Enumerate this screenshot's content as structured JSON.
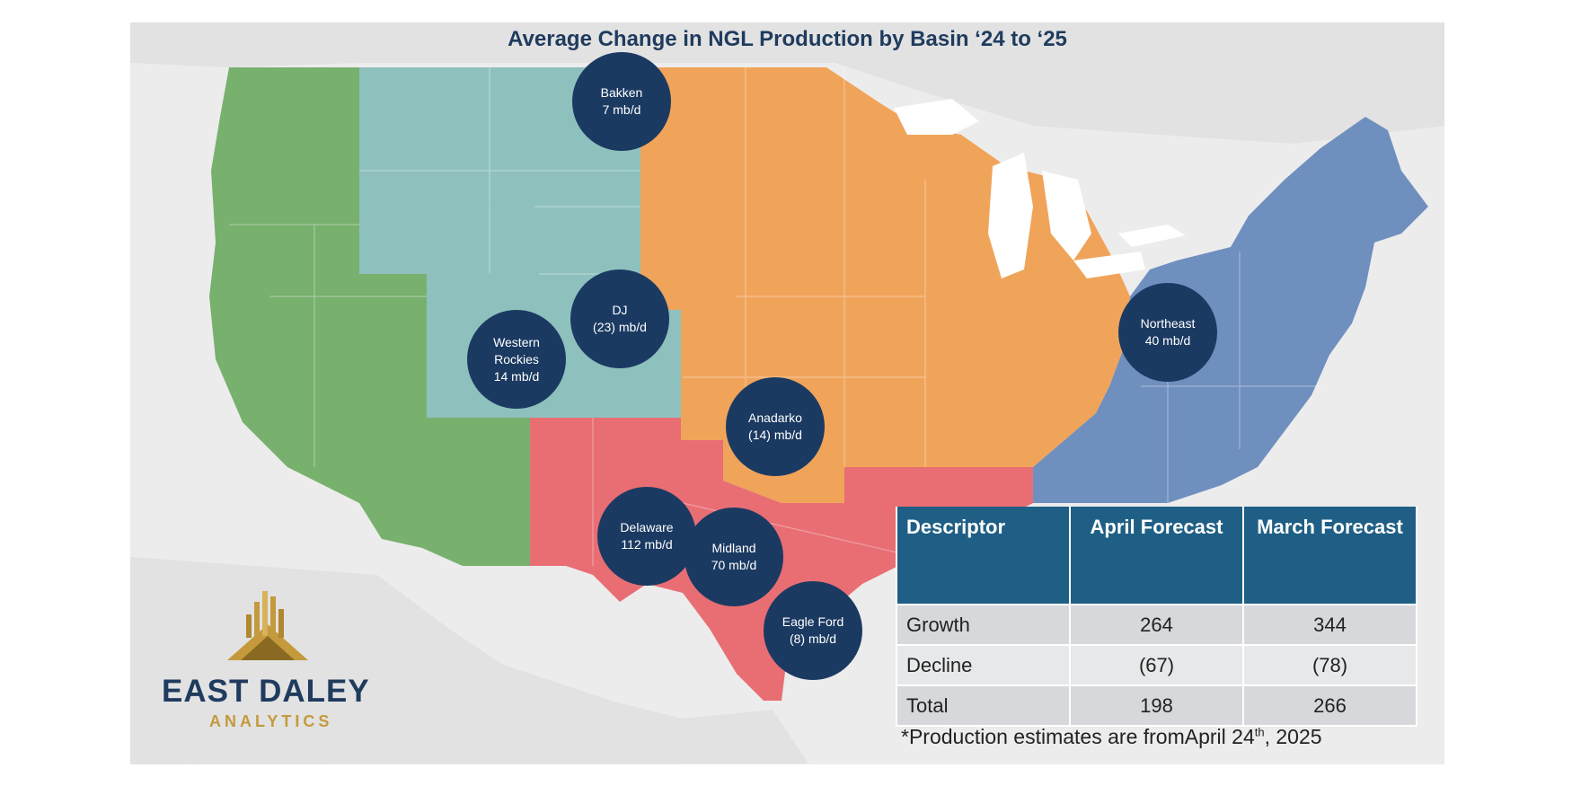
{
  "title": "Average Change in NGL Production by Basin ‘24 to ‘25",
  "colors": {
    "background": "#ececec",
    "land_gray": "#e0e0e0",
    "west_region": "#78b06e",
    "rockies_region": "#8ec1bd",
    "midcontinent_region": "#f0a45a",
    "texas_region": "#e86e74",
    "northeast_region": "#6f8fbf",
    "bubble": "#1b3a62",
    "table_header": "#1f5f85",
    "brand_navy": "#1f3b5e",
    "brand_gold": "#c49a3c"
  },
  "basins": [
    {
      "name_lines": [
        "Bakken",
        "7 mb/d"
      ]
    },
    {
      "name_lines": [
        "DJ",
        "(23) mb/d"
      ]
    },
    {
      "name_lines": [
        "Western",
        "Rockies",
        "14 mb/d"
      ]
    },
    {
      "name_lines": [
        "Northeast",
        "40 mb/d"
      ]
    },
    {
      "name_lines": [
        "Anadarko",
        "(14) mb/d"
      ]
    },
    {
      "name_lines": [
        "Delaware",
        "112 mb/d"
      ]
    },
    {
      "name_lines": [
        "Midland",
        "70 mb/d"
      ]
    },
    {
      "name_lines": [
        "Eagle Ford",
        "(8) mb/d"
      ]
    }
  ],
  "table": {
    "headers": [
      "Descriptor",
      "April Forecast",
      "March Forecast"
    ],
    "rows": [
      [
        "Growth",
        "264",
        "344"
      ],
      [
        "Decline",
        "(67)",
        "(78)"
      ],
      [
        "Total",
        "198",
        "266"
      ]
    ]
  },
  "footnote": {
    "before": "*Production estimates are fromApril 24",
    "sup": "th",
    "after": ", 2025"
  },
  "logo": {
    "name": "EAST DALEY",
    "sub": "ANALYTICS",
    "icon": "buildings-pyramid-icon"
  }
}
